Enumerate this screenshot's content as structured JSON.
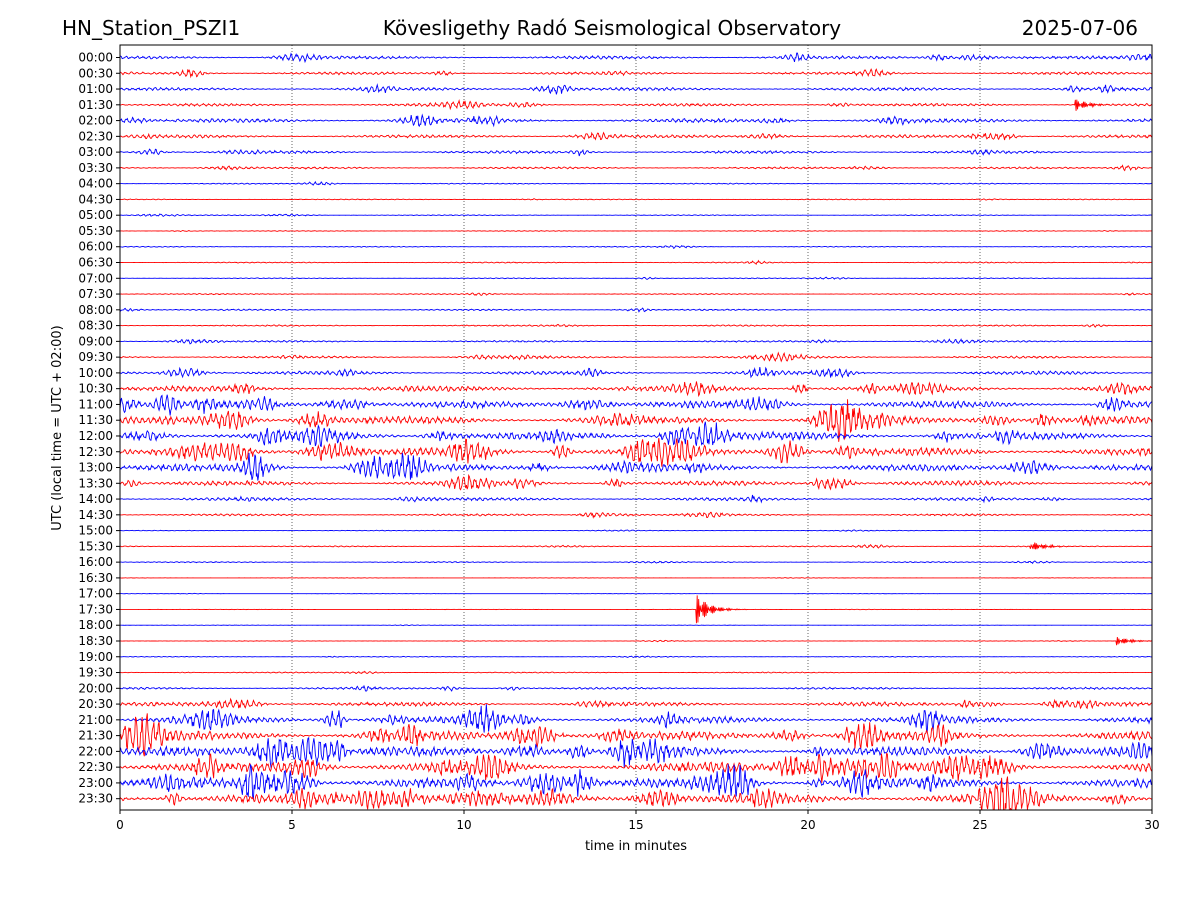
{
  "header": {
    "station": "HN_Station_PSZI1",
    "observatory": "Kövesligethy Radó Seismological Observatory",
    "date": "2025-07-06"
  },
  "colors": {
    "even_trace": "#0000ff",
    "odd_trace": "#ff0000",
    "grid": "#000000"
  },
  "chart_data": {
    "type": "line",
    "title": "Kövesligethy Radó Seismological Observatory",
    "xlabel": "time in minutes",
    "ylabel": "UTC (local time = UTC + 02:00)",
    "xlim": [
      0,
      30
    ],
    "x_ticks": [
      "0",
      "5",
      "10",
      "15",
      "20",
      "25",
      "30"
    ],
    "x_tick_values": [
      0,
      5,
      10,
      15,
      20,
      25,
      30
    ],
    "vertical_gridlines": [
      5,
      10,
      15,
      20,
      25
    ],
    "traces": [
      {
        "label": "00:00",
        "activity": 0.45
      },
      {
        "label": "00:30",
        "activity": 0.4
      },
      {
        "label": "01:00",
        "activity": 0.45
      },
      {
        "label": "01:30",
        "activity": 0.4
      },
      {
        "label": "02:00",
        "activity": 0.6
      },
      {
        "label": "02:30",
        "activity": 0.45
      },
      {
        "label": "03:00",
        "activity": 0.4
      },
      {
        "label": "03:30",
        "activity": 0.3
      },
      {
        "label": "04:00",
        "activity": 0.15
      },
      {
        "label": "04:30",
        "activity": 0.12
      },
      {
        "label": "05:00",
        "activity": 0.12
      },
      {
        "label": "05:30",
        "activity": 0.1
      },
      {
        "label": "06:00",
        "activity": 0.12
      },
      {
        "label": "06:30",
        "activity": 0.15
      },
      {
        "label": "07:00",
        "activity": 0.12
      },
      {
        "label": "07:30",
        "activity": 0.15
      },
      {
        "label": "08:00",
        "activity": 0.2
      },
      {
        "label": "08:30",
        "activity": 0.2
      },
      {
        "label": "09:00",
        "activity": 0.25
      },
      {
        "label": "09:30",
        "activity": 0.35
      },
      {
        "label": "10:00",
        "activity": 0.5
      },
      {
        "label": "10:30",
        "activity": 0.8
      },
      {
        "label": "11:00",
        "activity": 1.0
      },
      {
        "label": "11:30",
        "activity": 1.1
      },
      {
        "label": "12:00",
        "activity": 1.15
      },
      {
        "label": "12:30",
        "activity": 1.15
      },
      {
        "label": "13:00",
        "activity": 1.0
      },
      {
        "label": "13:30",
        "activity": 0.7
      },
      {
        "label": "14:00",
        "activity": 0.45
      },
      {
        "label": "14:30",
        "activity": 0.3
      },
      {
        "label": "15:00",
        "activity": 0.1
      },
      {
        "label": "15:30",
        "activity": 0.15
      },
      {
        "label": "16:00",
        "activity": 0.15
      },
      {
        "label": "16:30",
        "activity": 0.05
      },
      {
        "label": "17:00",
        "activity": 0.05
      },
      {
        "label": "17:30",
        "activity": 0.05
      },
      {
        "label": "18:00",
        "activity": 0.05
      },
      {
        "label": "18:30",
        "activity": 0.07
      },
      {
        "label": "19:00",
        "activity": 0.1
      },
      {
        "label": "19:30",
        "activity": 0.15
      },
      {
        "label": "20:00",
        "activity": 0.3
      },
      {
        "label": "20:30",
        "activity": 0.6
      },
      {
        "label": "21:00",
        "activity": 1.0
      },
      {
        "label": "21:30",
        "activity": 1.3
      },
      {
        "label": "22:00",
        "activity": 1.35
      },
      {
        "label": "22:30",
        "activity": 1.4
      },
      {
        "label": "23:00",
        "activity": 1.4
      },
      {
        "label": "23:30",
        "activity": 1.45
      }
    ],
    "events": [
      {
        "trace": "17:30",
        "minute": 16.8,
        "strength": 1.0
      },
      {
        "trace": "15:30",
        "minute": 26.5,
        "strength": 0.35
      },
      {
        "trace": "18:30",
        "minute": 29.0,
        "strength": 0.3
      },
      {
        "trace": "01:30",
        "minute": 27.8,
        "strength": 0.4
      }
    ]
  }
}
